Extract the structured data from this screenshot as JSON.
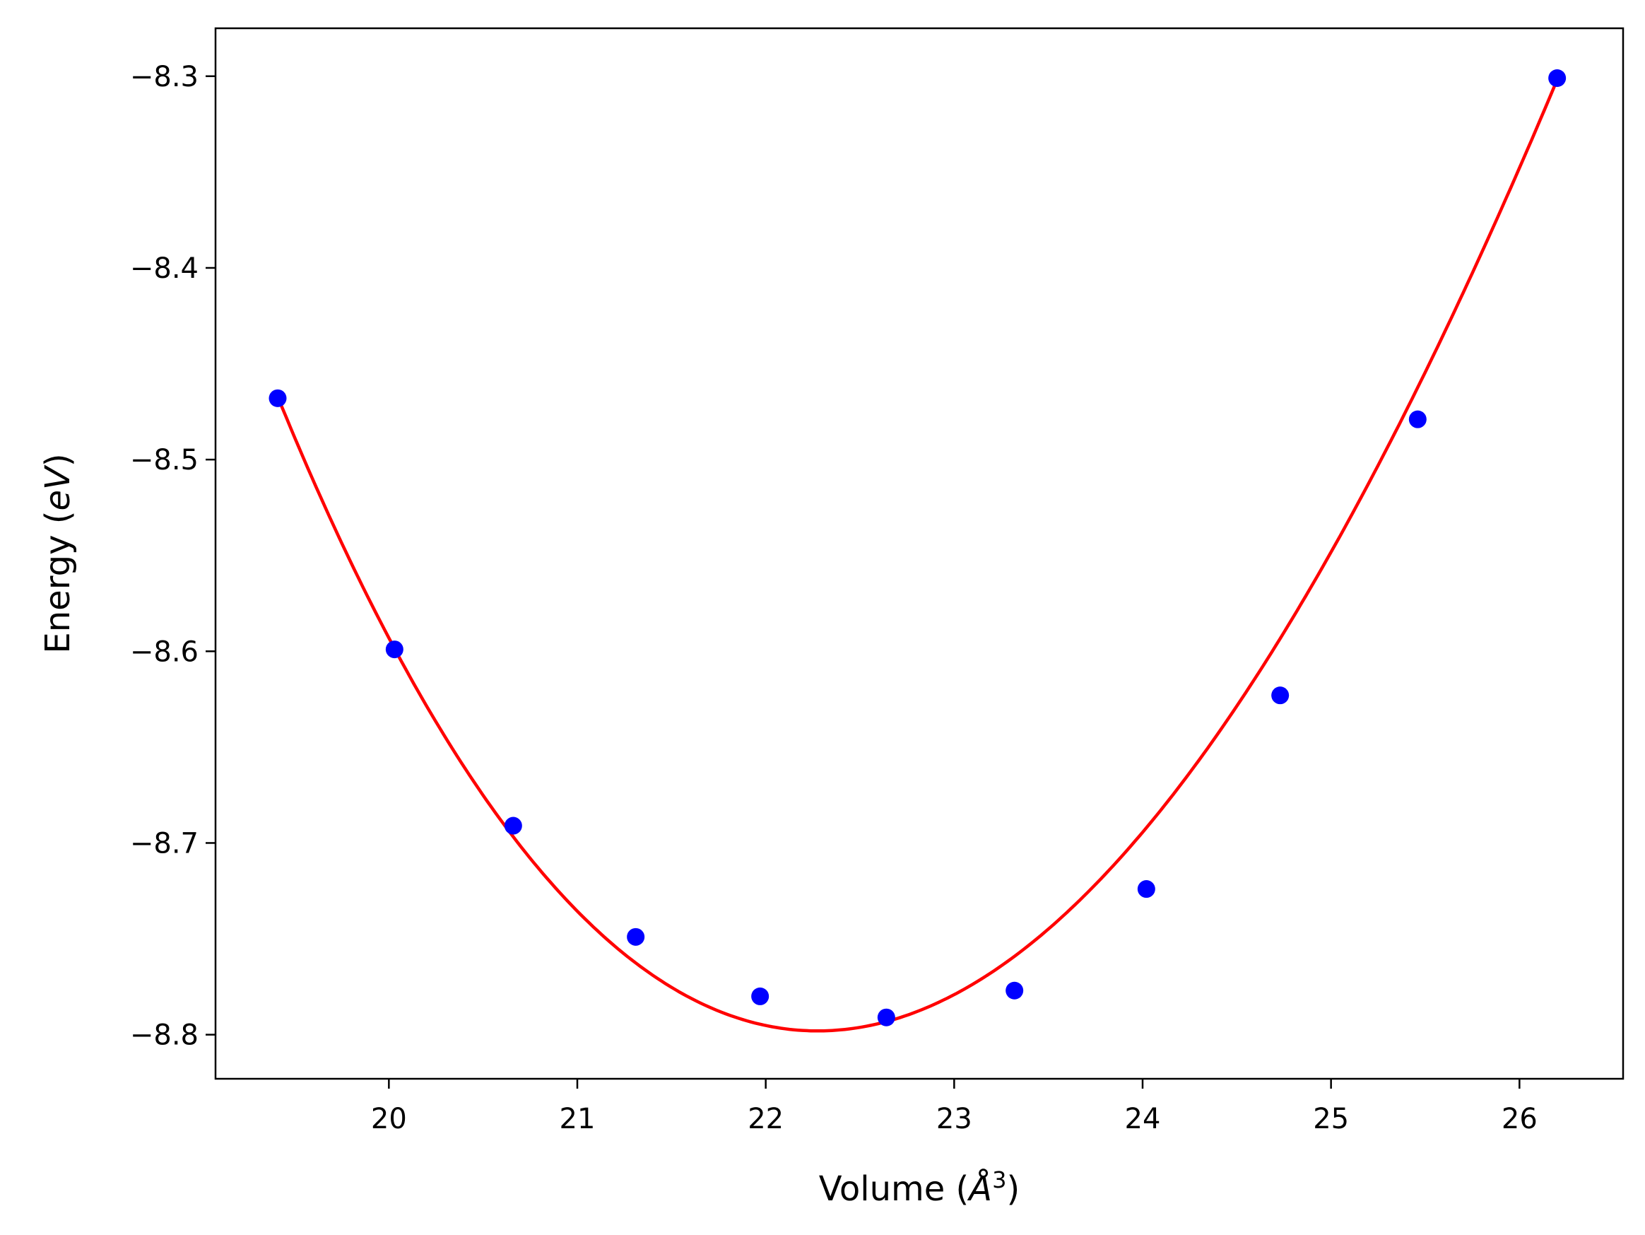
{
  "chart_data": {
    "type": "scatter",
    "title": "",
    "xlabel_text": "Volume (",
    "xlabel_unit": "Å",
    "xlabel_exp": "3",
    "xlabel_close": ")",
    "ylabel_text": "Energy (",
    "ylabel_unit": "eV",
    "ylabel_close": ")",
    "xlim": [
      19.08,
      26.55
    ],
    "ylim": [
      -8.823,
      -8.275
    ],
    "xticks": [
      20,
      21,
      22,
      23,
      24,
      25,
      26
    ],
    "xtick_labels": [
      "20",
      "21",
      "22",
      "23",
      "24",
      "25",
      "26"
    ],
    "yticks": [
      -8.3,
      -8.4,
      -8.5,
      -8.6,
      -8.7,
      -8.8
    ],
    "ytick_labels": [
      "−8.3",
      "−8.4",
      "−8.5",
      "−8.6",
      "−8.7",
      "−8.8"
    ],
    "grid": false,
    "series": [
      {
        "kind": "points",
        "color": "#0000ff",
        "x": [
          19.41,
          20.03,
          20.66,
          21.31,
          21.97,
          22.64,
          23.32,
          24.02,
          24.73,
          25.46,
          26.2
        ],
        "y": [
          -8.468,
          -8.599,
          -8.691,
          -8.749,
          -8.78,
          -8.791,
          -8.777,
          -8.724,
          -8.623,
          -8.479,
          -8.301
        ]
      },
      {
        "kind": "fit-line",
        "color": "#ff0000",
        "x": [
          19.41,
          19.75,
          20.09,
          20.43,
          20.77,
          21.11,
          21.45,
          21.79,
          22.13,
          22.47,
          22.81,
          23.15,
          23.49,
          23.83,
          24.17,
          24.51,
          24.85,
          25.19,
          25.53,
          25.87,
          26.2
        ],
        "y": [
          -8.473,
          -8.545,
          -8.607,
          -8.661,
          -8.706,
          -8.742,
          -8.769,
          -8.788,
          -8.798,
          -8.8,
          -8.793,
          -8.777,
          -8.753,
          -8.72,
          -8.677,
          -8.624,
          -8.559,
          -8.483,
          -8.466,
          -8.388,
          -8.301
        ]
      }
    ]
  }
}
